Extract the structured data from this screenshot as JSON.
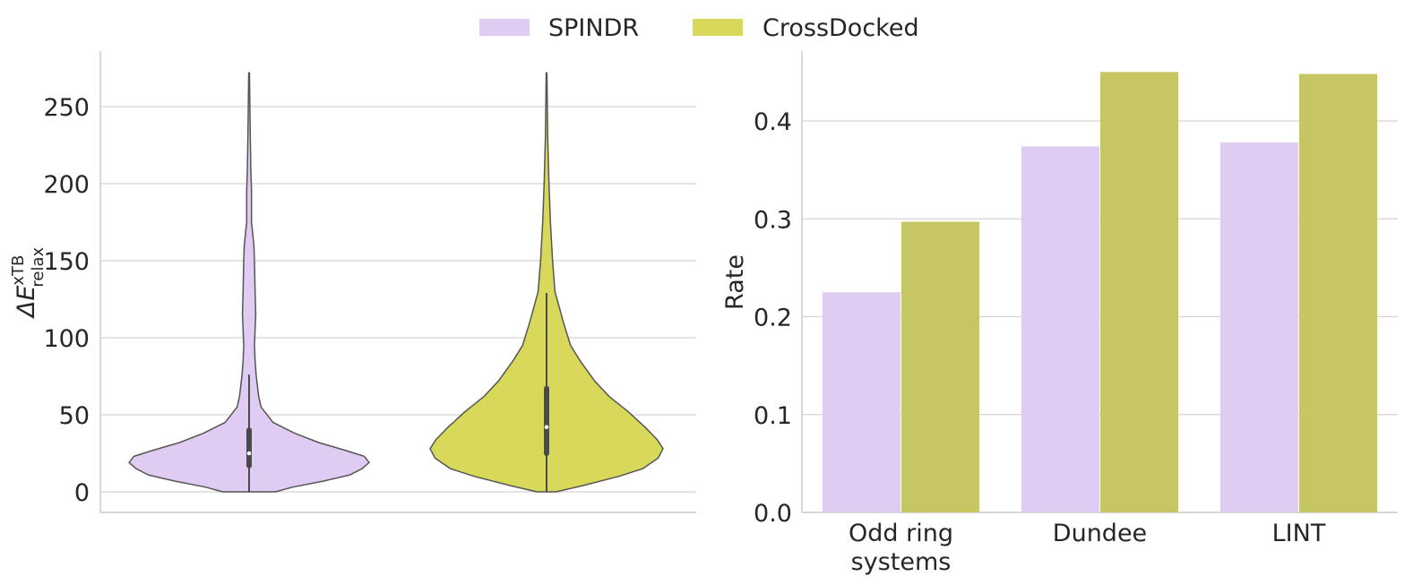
{
  "legend": [
    {
      "name": "SPINDR",
      "color": "#e0cbf2"
    },
    {
      "name": "CrossDocked",
      "color": "#d8d95a"
    }
  ],
  "chart_data": [
    {
      "type": "violin",
      "ylabel_base": "ΔE",
      "ylabel_sup": "xTB",
      "ylabel_sub": "relax",
      "ylim": [
        -12,
        290
      ],
      "yticks": [
        0,
        50,
        100,
        150,
        200,
        250
      ],
      "grid": true,
      "series": [
        {
          "name": "SPINDR",
          "color": "#e0cbf2",
          "min": 0,
          "max": 272,
          "q1": 17,
          "median": 25,
          "q3": 40,
          "whisker_high": 76,
          "density": [
            [
              0,
              0.22
            ],
            [
              3,
              0.36
            ],
            [
              7,
              0.62
            ],
            [
              11,
              0.84
            ],
            [
              15,
              0.94
            ],
            [
              19,
              1.0
            ],
            [
              23,
              0.96
            ],
            [
              27,
              0.8
            ],
            [
              32,
              0.58
            ],
            [
              38,
              0.38
            ],
            [
              45,
              0.2
            ],
            [
              55,
              0.1
            ],
            [
              62,
              0.08
            ],
            [
              75,
              0.06
            ],
            [
              85,
              0.05
            ],
            [
              95,
              0.045
            ],
            [
              105,
              0.05
            ],
            [
              115,
              0.055
            ],
            [
              130,
              0.05
            ],
            [
              150,
              0.045
            ],
            [
              160,
              0.04
            ],
            [
              175,
              0.02
            ],
            [
              195,
              0.02
            ],
            [
              210,
              0.014
            ],
            [
              240,
              0.008
            ],
            [
              272,
              0.003
            ]
          ]
        },
        {
          "name": "CrossDocked",
          "color": "#d8d95a",
          "min": 0,
          "max": 272,
          "q1": 25,
          "median": 42,
          "q3": 67,
          "whisker_high": 129,
          "density": [
            [
              0,
              0.08
            ],
            [
              4,
              0.3
            ],
            [
              10,
              0.6
            ],
            [
              15,
              0.8
            ],
            [
              22,
              0.93
            ],
            [
              28,
              0.97
            ],
            [
              34,
              0.92
            ],
            [
              42,
              0.82
            ],
            [
              52,
              0.68
            ],
            [
              62,
              0.52
            ],
            [
              72,
              0.4
            ],
            [
              85,
              0.28
            ],
            [
              95,
              0.2
            ],
            [
              110,
              0.14
            ],
            [
              130,
              0.07
            ],
            [
              150,
              0.05
            ],
            [
              175,
              0.032
            ],
            [
              200,
              0.02
            ],
            [
              230,
              0.01
            ],
            [
              272,
              0.003
            ]
          ]
        }
      ]
    },
    {
      "type": "bar",
      "categories": [
        "Odd ring systems",
        "Dundee",
        "LINT"
      ],
      "category_lines": [
        [
          "Odd ring",
          "systems"
        ],
        [
          "Dundee"
        ],
        [
          "LINT"
        ]
      ],
      "ylabel": "Rate",
      "ylim": [
        0,
        0.46
      ],
      "yticks": [
        "0.0",
        "0.1",
        "0.2",
        "0.3",
        "0.4"
      ],
      "grid": true,
      "series": [
        {
          "name": "SPINDR",
          "color": "#e0cbf2",
          "values": [
            0.225,
            0.374,
            0.378
          ]
        },
        {
          "name": "CrossDocked",
          "color": "#c7c664",
          "values": [
            0.297,
            0.45,
            0.448
          ]
        }
      ]
    }
  ]
}
